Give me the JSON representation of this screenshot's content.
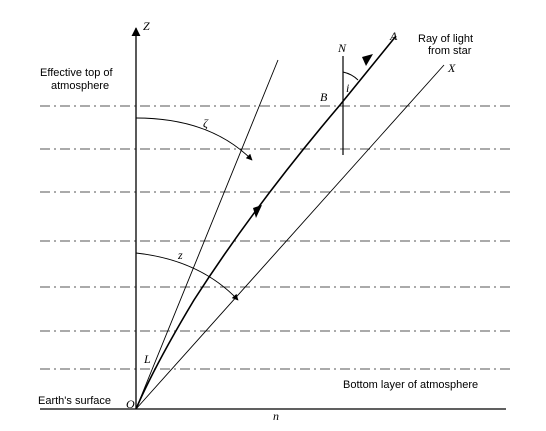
{
  "labels": {
    "z_axis": "Z",
    "effective_top_line1": "Effective top of",
    "effective_top_line2": "atmosphere",
    "ray_line1": "Ray of light",
    "ray_line2": "from star",
    "point_a": "A",
    "point_b": "B",
    "point_n": "N",
    "point_x": "X",
    "angle_i": "i",
    "angle_zeta": "ζ",
    "angle_z": "z",
    "point_l": "L",
    "point_o": "O",
    "point_n_lower": "n",
    "bottom_layer": "Bottom layer of atmosphere",
    "earth_surface": "Earth's surface"
  }
}
